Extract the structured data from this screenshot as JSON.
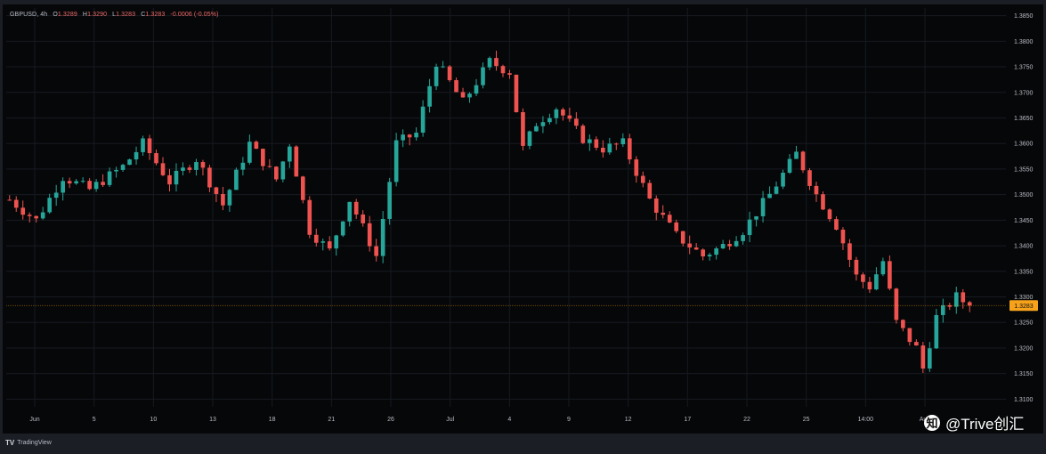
{
  "legend": {
    "symbol": "GBPUSD",
    "timeframe": "4h",
    "o_label": "O",
    "o_value": "1.3289",
    "h_label": "H",
    "h_value": "1.3290",
    "l_label": "L",
    "l_value": "1.3283",
    "c_label": "C",
    "c_value": "1.3283",
    "change": "-0.0006 (-0.05%)"
  },
  "branding": {
    "platform": "TradingView",
    "watermark": "@Trive创汇",
    "watermark_icon": "zhihu-logo-icon"
  },
  "colors": {
    "background": "#060708",
    "grid": "#161a22",
    "up": "#26a69a",
    "down": "#ef5350",
    "price_line": "#f7a21b",
    "axis_text": "#b8bcc6"
  },
  "chart_data": {
    "type": "candlestick",
    "symbol": "GBPUSD",
    "interval": "4h",
    "y_axis": {
      "position": "right",
      "ylim": [
        1.3085,
        1.3865
      ],
      "ticks": [
        "1.3100",
        "1.3150",
        "1.3200",
        "1.3250",
        "1.3300",
        "1.3350",
        "1.3400",
        "1.3450",
        "1.3500",
        "1.3550",
        "1.3600",
        "1.3650",
        "1.3700",
        "1.3750",
        "1.3800",
        "1.3850"
      ]
    },
    "x_axis": {
      "ticks": [
        "Jun",
        "5",
        "10",
        "13",
        "18",
        "21",
        "26",
        "Jul",
        "4",
        "9",
        "12",
        "17",
        "22",
        "25",
        "14:00",
        "Aug"
      ]
    },
    "last_price": 1.3283,
    "last_price_label": "1.3283",
    "grid": true,
    "close_path": [
      [
        0,
        1.349
      ],
      [
        4,
        1.345
      ],
      [
        8,
        1.3535
      ],
      [
        12,
        1.351
      ],
      [
        17,
        1.3555
      ],
      [
        20,
        1.36
      ],
      [
        24,
        1.3525
      ],
      [
        28,
        1.357
      ],
      [
        32,
        1.348
      ],
      [
        36,
        1.36
      ],
      [
        40,
        1.353
      ],
      [
        42,
        1.36
      ],
      [
        45,
        1.343
      ],
      [
        48,
        1.339
      ],
      [
        51,
        1.349
      ],
      [
        55,
        1.338
      ],
      [
        58,
        1.36
      ],
      [
        61,
        1.362
      ],
      [
        64,
        1.376
      ],
      [
        68,
        1.368
      ],
      [
        72,
        1.376
      ],
      [
        75,
        1.374
      ],
      [
        77,
        1.359
      ],
      [
        79,
        1.364
      ],
      [
        82,
        1.367
      ],
      [
        86,
        1.361
      ],
      [
        89,
        1.359
      ],
      [
        92,
        1.36
      ],
      [
        96,
        1.349
      ],
      [
        100,
        1.342
      ],
      [
        104,
        1.338
      ],
      [
        107,
        1.34
      ],
      [
        110,
        1.343
      ],
      [
        114,
        1.35
      ],
      [
        118,
        1.358
      ],
      [
        121,
        1.35
      ],
      [
        124,
        1.344
      ],
      [
        127,
        1.334
      ],
      [
        129,
        1.332
      ],
      [
        131,
        1.337
      ],
      [
        133,
        1.325
      ],
      [
        136,
        1.32
      ],
      [
        137,
        1.316
      ],
      [
        139,
        1.326
      ],
      [
        142,
        1.33
      ],
      [
        144,
        1.3283
      ]
    ],
    "candle_count": 145
  }
}
